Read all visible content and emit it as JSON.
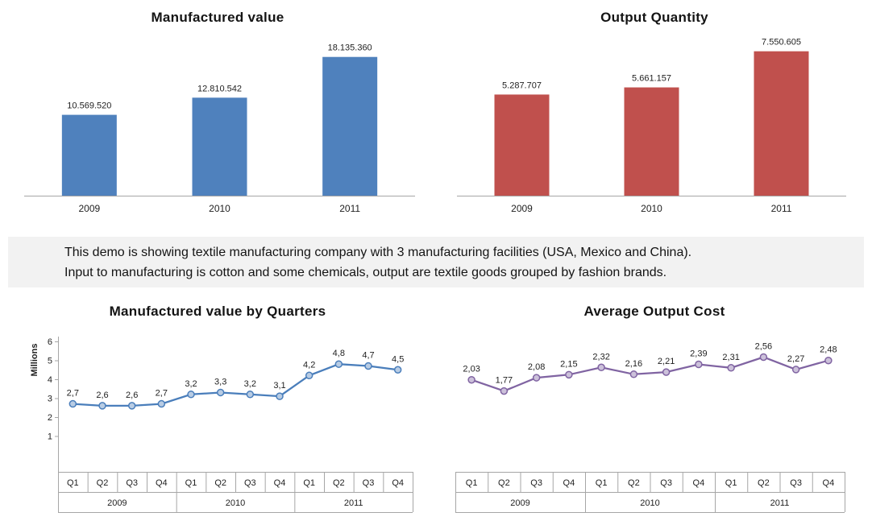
{
  "banner": {
    "line1": "This demo is showing textile manufacturing company with 3 manufacturing facilities (USA, Mexico and China).",
    "line2": "Input to manufacturing is cotton and some chemicals, output are textile goods grouped by fashion brands.",
    "background": "#F2F2F2"
  },
  "chart_data": [
    {
      "id": "manufactured-value",
      "type": "bar",
      "title": "Manufactured value",
      "categories": [
        "2009",
        "2010",
        "2011"
      ],
      "values": [
        10569520,
        12810542,
        18135360
      ],
      "value_labels": [
        "10.569.520",
        "12.810.542",
        "18.135.360"
      ],
      "color": "#4F81BD",
      "ylim": [
        0,
        20000000
      ],
      "yaxis_visible": false,
      "legend": "none"
    },
    {
      "id": "output-quantity",
      "type": "bar",
      "title": "Output Quantity",
      "categories": [
        "2009",
        "2010",
        "2011"
      ],
      "values": [
        5287707,
        5661157,
        7550605
      ],
      "value_labels": [
        "5.287.707",
        "5.661.157",
        "7.550.605"
      ],
      "color": "#C0504D",
      "ylim": [
        0,
        8000000
      ],
      "yaxis_visible": false,
      "legend": "none"
    },
    {
      "id": "manufactured-value-by-quarters",
      "type": "line",
      "title": "Manufactured value by Quarters",
      "ylabel": "Millions",
      "x_quarters": [
        "Q1",
        "Q2",
        "Q3",
        "Q4",
        "Q1",
        "Q2",
        "Q3",
        "Q4",
        "Q1",
        "Q2",
        "Q3",
        "Q4"
      ],
      "x_years": [
        "2009",
        "2010",
        "2011"
      ],
      "values": [
        2.7,
        2.6,
        2.6,
        2.7,
        3.2,
        3.3,
        3.2,
        3.1,
        4.2,
        4.8,
        4.7,
        4.5
      ],
      "value_labels": [
        "2,7",
        "2,6",
        "2,6",
        "2,7",
        "3,2",
        "3,3",
        "3,2",
        "3,1",
        "4,2",
        "4,8",
        "4,7",
        "4,5"
      ],
      "color": "#4A7EBB",
      "marker_fill": "#B8CCE4",
      "ylim": [
        0,
        6
      ],
      "yticks": [
        1,
        2,
        3,
        4,
        5,
        6
      ],
      "yaxis_visible": true,
      "legend": "none"
    },
    {
      "id": "average-output-cost",
      "type": "line",
      "title": "Average Output Cost",
      "x_quarters": [
        "Q1",
        "Q2",
        "Q3",
        "Q4",
        "Q1",
        "Q2",
        "Q3",
        "Q4",
        "Q1",
        "Q2",
        "Q3",
        "Q4"
      ],
      "x_years": [
        "2009",
        "2010",
        "2011"
      ],
      "values": [
        2.03,
        1.77,
        2.08,
        2.15,
        2.32,
        2.16,
        2.21,
        2.39,
        2.31,
        2.56,
        2.27,
        2.48
      ],
      "value_labels": [
        "2,03",
        "1,77",
        "2,08",
        "2,15",
        "2,32",
        "2,16",
        "2,21",
        "2,39",
        "2,31",
        "2,56",
        "2,27",
        "2,48"
      ],
      "color": "#8064A2",
      "marker_fill": "#CCC1DA",
      "ylim": [
        0,
        3
      ],
      "yaxis_visible": false,
      "legend": "none"
    }
  ]
}
